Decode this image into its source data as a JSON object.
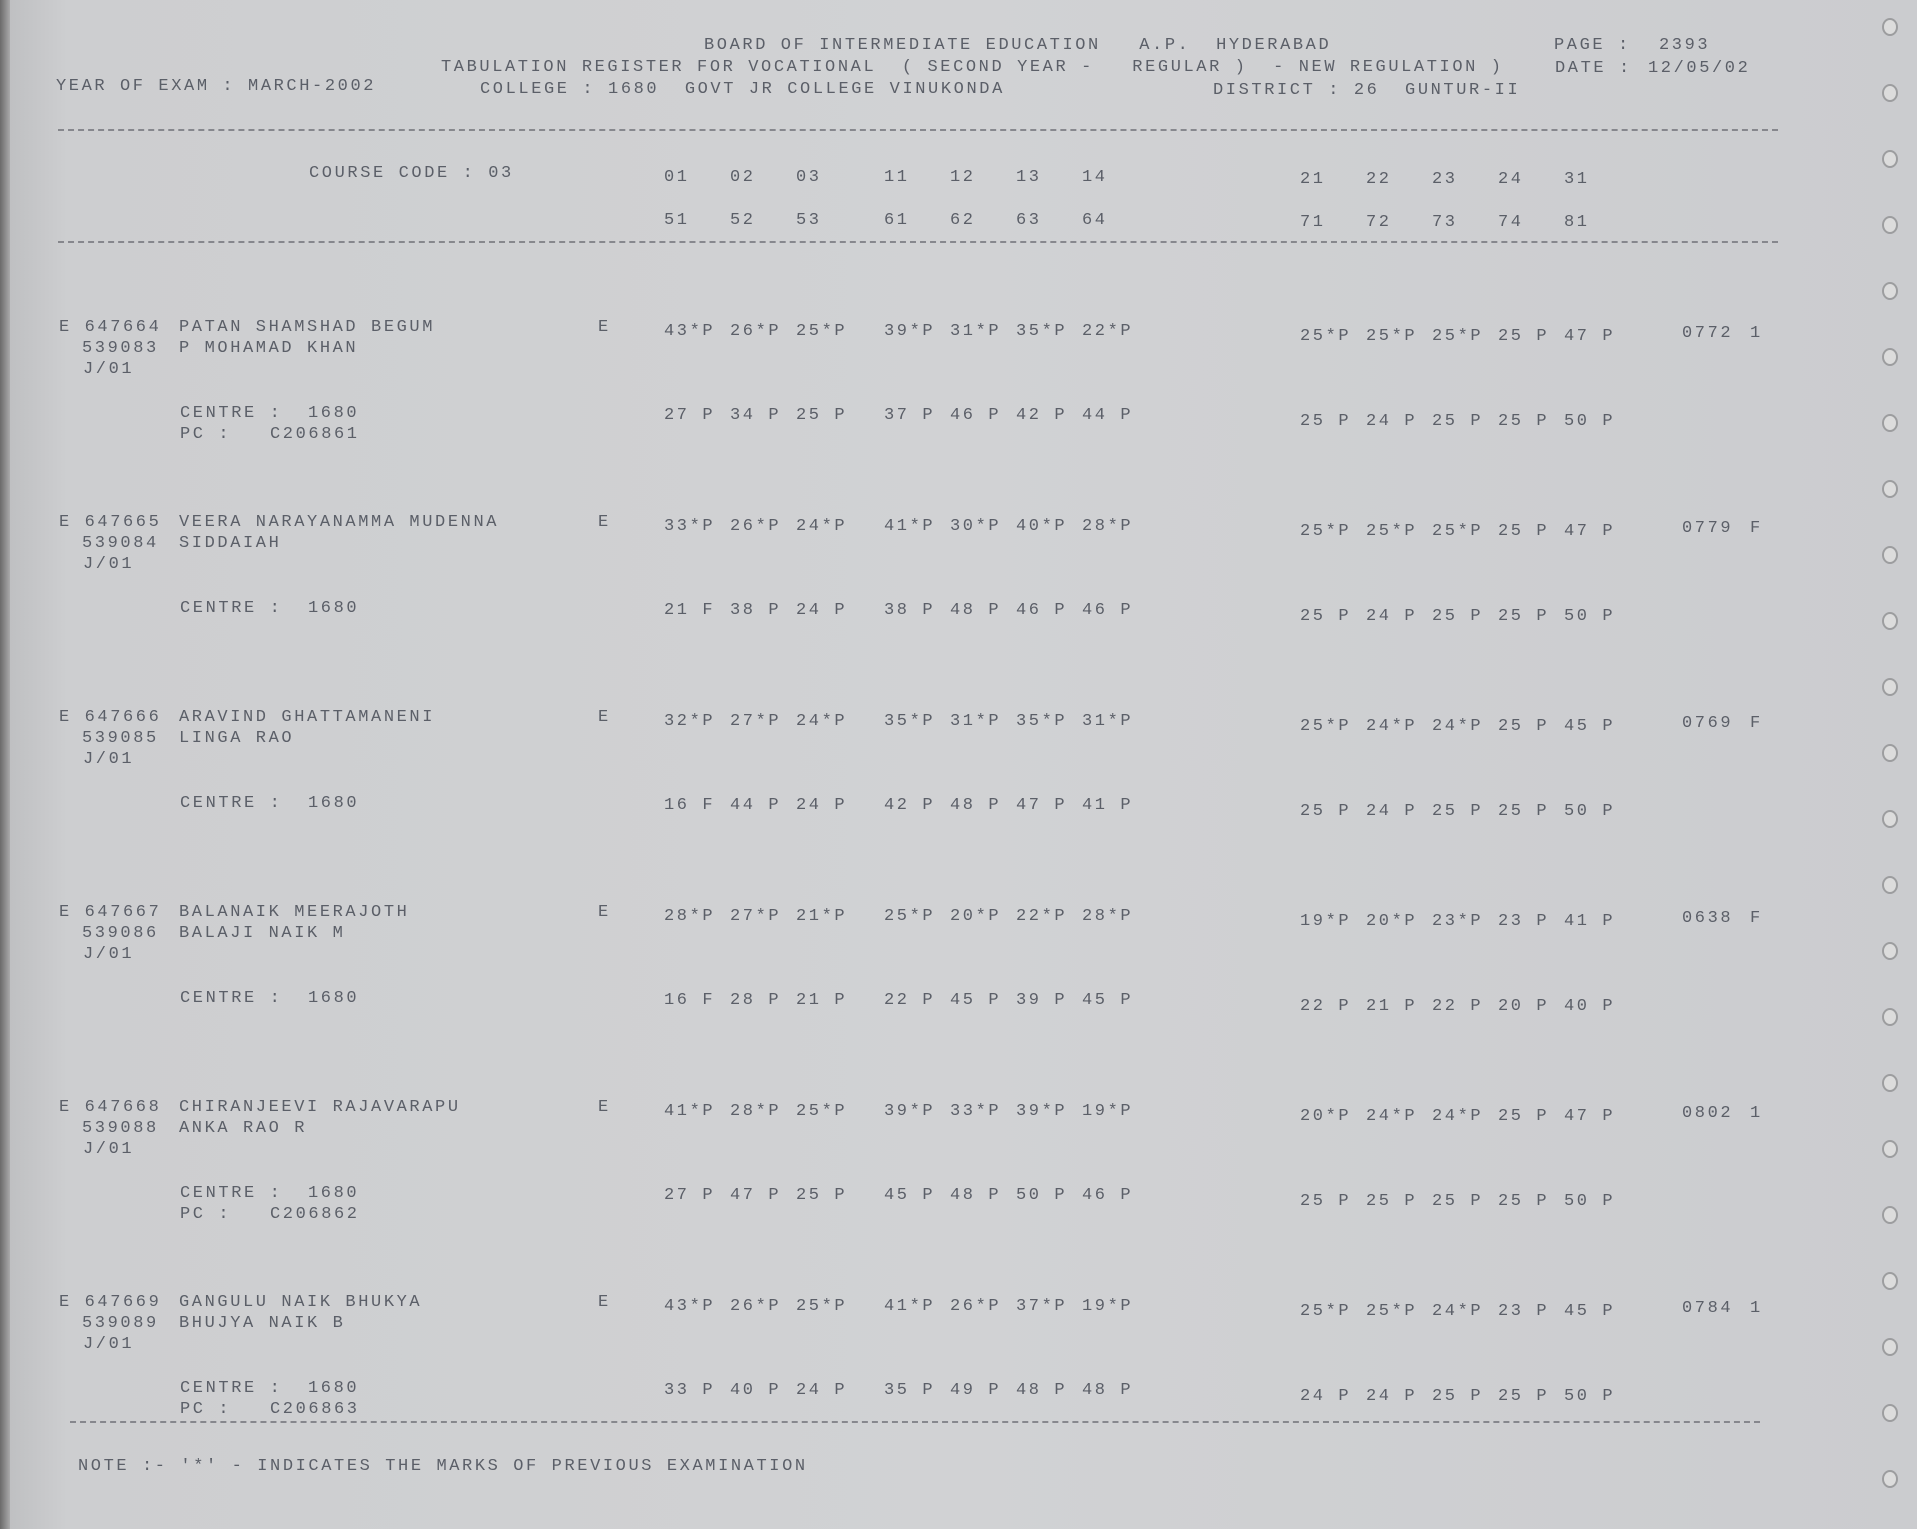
{
  "header": {
    "board": "BOARD OF INTERMEDIATE EDUCATION   A.P.  HYDERABAD",
    "page_label": "PAGE :",
    "page": "2393",
    "register": "TABULATION REGISTER FOR VOCATIONAL  ( SECOND YEAR -   REGULAR )  - NEW REGULATION )",
    "date_label": "DATE :",
    "date": "12/05/02",
    "year_of_exam": "YEAR OF EXAM : MARCH-2002",
    "college": "COLLEGE : 1680  GOVT JR COLLEGE VINUKONDA",
    "district": "DISTRICT : 26  GUNTUR-II",
    "course_code": "COURSE CODE : 03",
    "subject_codes_row1": [
      [
        "01",
        "02",
        "03"
      ],
      [
        "11",
        "12",
        "13",
        "14"
      ],
      [
        "21",
        "22",
        "23",
        "24",
        "31"
      ]
    ],
    "subject_codes_row2": [
      [
        "51",
        "52",
        "53"
      ],
      [
        "61",
        "62",
        "63",
        "64"
      ],
      [
        "71",
        "72",
        "73",
        "74",
        "81"
      ]
    ]
  },
  "labels": {
    "centre": "CENTRE :",
    "pc": "PC :"
  },
  "records": [
    {
      "id": "E 647664",
      "roll": "539083",
      "name": "PATAN SHAMSHAD BEGUM",
      "parent": "P MOHAMAD KHAN",
      "group": "J/01",
      "medium": "E",
      "marks1": [
        [
          "43*P",
          "26*P",
          "25*P"
        ],
        [
          "39*P",
          "31*P",
          "35*P",
          "22*P"
        ],
        [
          "25*P",
          "25*P",
          "25*P",
          "25 P",
          "47 P"
        ]
      ],
      "marks2": [
        [
          "27 P",
          "34 P",
          "25 P"
        ],
        [
          "37 P",
          "46 P",
          "42 P",
          "44 P"
        ],
        [
          "25 P",
          "24 P",
          "25 P",
          "25 P",
          "50 P"
        ]
      ],
      "total": "0772",
      "result": "1",
      "centre": "1680",
      "pc": "C206861"
    },
    {
      "id": "E 647665",
      "roll": "539084",
      "name": "VEERA NARAYANAMMA MUDENNA",
      "parent": "SIDDAIAH",
      "group": "J/01",
      "medium": "E",
      "marks1": [
        [
          "33*P",
          "26*P",
          "24*P"
        ],
        [
          "41*P",
          "30*P",
          "40*P",
          "28*P"
        ],
        [
          "25*P",
          "25*P",
          "25*P",
          "25 P",
          "47 P"
        ]
      ],
      "marks2": [
        [
          "21 F",
          "38 P",
          "24 P"
        ],
        [
          "38 P",
          "48 P",
          "46 P",
          "46 P"
        ],
        [
          "25 P",
          "24 P",
          "25 P",
          "25 P",
          "50 P"
        ]
      ],
      "total": "0779",
      "result": "F",
      "centre": "1680"
    },
    {
      "id": "E 647666",
      "roll": "539085",
      "name": "ARAVIND GHATTAMANENI",
      "parent": "LINGA RAO",
      "group": "J/01",
      "medium": "E",
      "marks1": [
        [
          "32*P",
          "27*P",
          "24*P"
        ],
        [
          "35*P",
          "31*P",
          "35*P",
          "31*P"
        ],
        [
          "25*P",
          "24*P",
          "24*P",
          "25 P",
          "45 P"
        ]
      ],
      "marks2": [
        [
          "16 F",
          "44 P",
          "24 P"
        ],
        [
          "42 P",
          "48 P",
          "47 P",
          "41 P"
        ],
        [
          "25 P",
          "24 P",
          "25 P",
          "25 P",
          "50 P"
        ]
      ],
      "total": "0769",
      "result": "F",
      "centre": "1680"
    },
    {
      "id": "E 647667",
      "roll": "539086",
      "name": "BALANAIK MEERAJOTH",
      "parent": "BALAJI NAIK M",
      "group": "J/01",
      "medium": "E",
      "marks1": [
        [
          "28*P",
          "27*P",
          "21*P"
        ],
        [
          "25*P",
          "20*P",
          "22*P",
          "28*P"
        ],
        [
          "19*P",
          "20*P",
          "23*P",
          "23 P",
          "41 P"
        ]
      ],
      "marks2": [
        [
          "16 F",
          "28 P",
          "21 P"
        ],
        [
          "22 P",
          "45 P",
          "39 P",
          "45 P"
        ],
        [
          "22 P",
          "21 P",
          "22 P",
          "20 P",
          "40 P"
        ]
      ],
      "total": "0638",
      "result": "F",
      "centre": "1680"
    },
    {
      "id": "E 647668",
      "roll": "539088",
      "name": "CHIRANJEEVI RAJAVARAPU",
      "parent": "ANKA RAO R",
      "group": "J/01",
      "medium": "E",
      "marks1": [
        [
          "41*P",
          "28*P",
          "25*P"
        ],
        [
          "39*P",
          "33*P",
          "39*P",
          "19*P"
        ],
        [
          "20*P",
          "24*P",
          "24*P",
          "25 P",
          "47 P"
        ]
      ],
      "marks2": [
        [
          "27 P",
          "47 P",
          "25 P"
        ],
        [
          "45 P",
          "48 P",
          "50 P",
          "46 P"
        ],
        [
          "25 P",
          "25 P",
          "25 P",
          "25 P",
          "50 P"
        ]
      ],
      "total": "0802",
      "result": "1",
      "centre": "1680",
      "pc": "C206862"
    },
    {
      "id": "E 647669",
      "roll": "539089",
      "name": "GANGULU NAIK BHUKYA",
      "parent": "BHUJYA NAIK B",
      "group": "J/01",
      "medium": "E",
      "marks1": [
        [
          "43*P",
          "26*P",
          "25*P"
        ],
        [
          "41*P",
          "26*P",
          "37*P",
          "19*P"
        ],
        [
          "25*P",
          "25*P",
          "24*P",
          "23 P",
          "45 P"
        ]
      ],
      "marks2": [
        [
          "33 P",
          "40 P",
          "24 P"
        ],
        [
          "35 P",
          "49 P",
          "48 P",
          "48 P"
        ],
        [
          "24 P",
          "24 P",
          "25 P",
          "25 P",
          "50 P"
        ]
      ],
      "total": "0784",
      "result": "1",
      "centre": "1680",
      "pc": "C206863"
    }
  ],
  "footer": {
    "note": "NOTE :- '*' - INDICATES THE MARKS OF PREVIOUS EXAMINATION"
  }
}
